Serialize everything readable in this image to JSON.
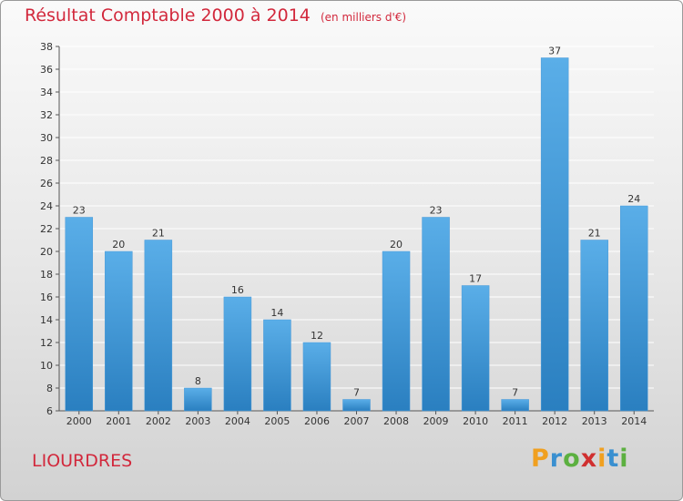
{
  "header": {
    "title": "Résultat Comptable 2000 à 2014",
    "unit": "(en milliers d'€)"
  },
  "footer": {
    "town": "LIOURDRES",
    "logo": [
      "P",
      "r",
      "o",
      "x",
      "i",
      "t",
      "i"
    ]
  },
  "colors": {
    "title": "#d2283c",
    "bar_light": "#5aaee8",
    "bar_dark": "#2a7fc0",
    "grid": "#ffffff",
    "logo": [
      "#f0a020",
      "#3a90d0",
      "#5cb040",
      "#d03030",
      "#f0a020",
      "#3a90d0",
      "#5cb040"
    ]
  },
  "chart_data": {
    "type": "bar",
    "categories": [
      "2000",
      "2001",
      "2002",
      "2003",
      "2004",
      "2005",
      "2006",
      "2007",
      "2008",
      "2009",
      "2010",
      "2011",
      "2012",
      "2013",
      "2014"
    ],
    "values": [
      23,
      20,
      21,
      8,
      16,
      14,
      12,
      7,
      20,
      23,
      17,
      7,
      37,
      21,
      24
    ],
    "ylim": [
      6,
      38
    ],
    "yticks": [
      6,
      8,
      10,
      12,
      14,
      16,
      18,
      20,
      22,
      24,
      26,
      28,
      30,
      32,
      34,
      36,
      38
    ],
    "grid": true,
    "data_labels": true
  }
}
